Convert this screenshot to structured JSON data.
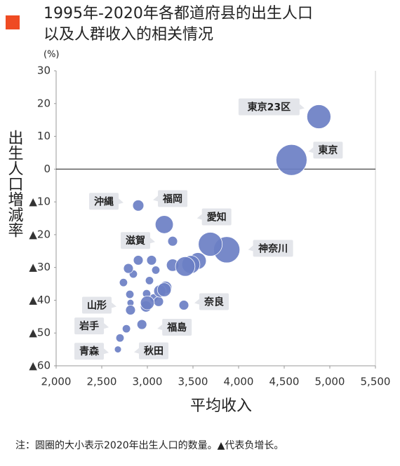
{
  "chart_data": {
    "type": "scatter",
    "title_lines": [
      "1995年-2020年各都道府县的出生人口",
      "以及人群收入的相关情况"
    ],
    "y_unit": "(%)",
    "y_label": "出生人口増減率",
    "x_label": "平均收入",
    "note": "注：圆圈的大小表示2020年出生人口的数量。▲代表负增长。",
    "color": "#6b7fc4",
    "zero_line": true,
    "xlim": [
      2000,
      5500
    ],
    "ylim": [
      -60,
      30
    ],
    "xticks": [
      {
        "value": 2000,
        "label": "2,000"
      },
      {
        "value": 2500,
        "label": "2,500"
      },
      {
        "value": 3000,
        "label": "3,000"
      },
      {
        "value": 3500,
        "label": "3,500"
      },
      {
        "value": 4000,
        "label": "4,000"
      },
      {
        "value": 4500,
        "label": "4,500"
      },
      {
        "value": 5000,
        "label": "5,000"
      },
      {
        "value": 5500,
        "label": "5,500"
      }
    ],
    "yticks": [
      30,
      20,
      10,
      0,
      {
        "value": -10,
        "label": "▲10"
      },
      {
        "value": -20,
        "label": "▲20"
      },
      {
        "value": -30,
        "label": "▲30"
      },
      {
        "value": -40,
        "label": "▲40"
      },
      {
        "value": -50,
        "label": "▲50"
      },
      {
        "value": -60,
        "label": "▲60"
      }
    ],
    "labels": [
      "東京23区",
      "東京",
      "沖縄",
      "福岡",
      "愛知",
      "神奈川",
      "滋賀",
      "奈良",
      "山形",
      "岩手",
      "青森",
      "秋田",
      "福島",
      null,
      null,
      null,
      null,
      null,
      null,
      null,
      null,
      null,
      null,
      null,
      null,
      null,
      null,
      null,
      null,
      null,
      null,
      null,
      null,
      null
    ],
    "x": [
      4880,
      4580,
      2900,
      3185,
      3690,
      3870,
      3277,
      3400,
      2815,
      2770,
      2700,
      2677,
      2940,
      3415,
      3477,
      3554,
      3277,
      3185,
      3138,
      3000,
      2985,
      3046,
      2900,
      2792,
      2846,
      2738,
      2808,
      3092,
      3023,
      2992,
      3123,
      3200,
      3069,
      2815
    ],
    "values": [
      16.0,
      2.8,
      -11.1,
      -16.9,
      -22.9,
      -24.6,
      -22.0,
      -41.5,
      -43.0,
      -48.7,
      -51.5,
      -55.0,
      -47.4,
      -29.7,
      -29.1,
      -28.0,
      -29.3,
      -36.8,
      -37.2,
      -40.8,
      -41.9,
      -27.8,
      -27.8,
      -30.3,
      -32.0,
      -34.6,
      -38.2,
      -30.8,
      -34.0,
      -38.0,
      -40.4,
      -36.1,
      -39.3,
      -40.8
    ],
    "sizes": [
      60,
      100,
      13,
      34,
      60,
      72,
      10,
      10,
      10,
      7,
      7,
      5,
      10,
      40,
      34,
      29,
      16,
      20,
      16,
      20,
      13,
      10,
      10,
      10,
      7,
      7,
      7,
      7,
      7,
      7,
      10,
      16,
      7,
      5
    ]
  }
}
